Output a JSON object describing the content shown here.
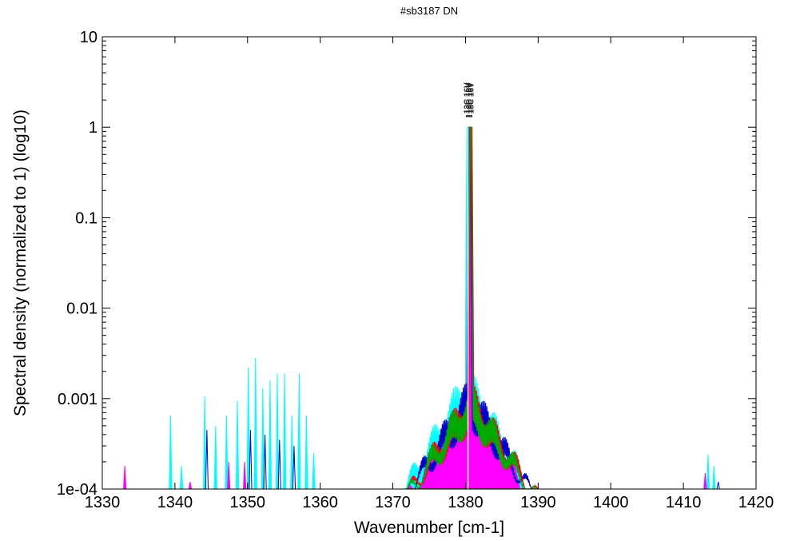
{
  "chart_data": {
    "type": "line",
    "title": "#sb3187 DN",
    "xlabel": "Wavenumber [cm-1]",
    "ylabel": "Spectral density (normalized to 1) (log10)",
    "xlim": [
      1330,
      1420
    ],
    "ylim": [
      0.0001,
      10
    ],
    "yscale": "log",
    "grid": false,
    "legend": "none",
    "xticks": [
      1330,
      1340,
      1350,
      1360,
      1370,
      1380,
      1390,
      1400,
      1410,
      1420
    ],
    "yticks": [
      {
        "value": 0.0001,
        "label": "1e-04"
      },
      {
        "value": 0.001,
        "label": "0.001"
      },
      {
        "value": 0.01,
        "label": "0.01"
      },
      {
        "value": 0.1,
        "label": "0.1"
      },
      {
        "value": 1,
        "label": "1"
      },
      {
        "value": 10,
        "label": "10"
      }
    ],
    "peak_annotations": [
      {
        "x": 1380.2,
        "label": "13C 16V"
      },
      {
        "x": 1380.5,
        "label": "16C 16V"
      },
      {
        "x": 1380.8,
        "label": "18C 16V"
      }
    ],
    "series": [
      {
        "color": "#00ffff",
        "filled": true,
        "center": 1380.3,
        "peak": 1.0,
        "halfwidth": 9.5,
        "line_base": 0.0025,
        "lines": [
          {
            "x": 1339.4,
            "y": 0.00065
          },
          {
            "x": 1340.9,
            "y": 0.00018
          },
          {
            "x": 1344.1,
            "y": 0.00105
          },
          {
            "x": 1345.6,
            "y": 0.0005
          },
          {
            "x": 1347.1,
            "y": 0.00065
          },
          {
            "x": 1348.6,
            "y": 0.00095
          },
          {
            "x": 1350.1,
            "y": 0.0022
          },
          {
            "x": 1351.1,
            "y": 0.0028
          },
          {
            "x": 1352.1,
            "y": 0.0013
          },
          {
            "x": 1353.1,
            "y": 0.0016
          },
          {
            "x": 1354.1,
            "y": 0.0019
          },
          {
            "x": 1355.1,
            "y": 0.0019
          },
          {
            "x": 1356.1,
            "y": 0.00065
          },
          {
            "x": 1357.1,
            "y": 0.0019
          },
          {
            "x": 1358.1,
            "y": 0.00065
          },
          {
            "x": 1359.1,
            "y": 0.00025
          },
          {
            "x": 1413.4,
            "y": 0.00024
          },
          {
            "x": 1414.2,
            "y": 0.00018
          }
        ]
      },
      {
        "color": "#ff00ff",
        "filled": true,
        "center": 1380.5,
        "peak": 1.0,
        "halfwidth": 8.5,
        "line_base": 0.0015,
        "lines": [
          {
            "x": 1333.1,
            "y": 0.00018
          },
          {
            "x": 1342.1,
            "y": 0.00012
          },
          {
            "x": 1347.4,
            "y": 0.0002
          },
          {
            "x": 1349.6,
            "y": 0.0002
          },
          {
            "x": 1413.0,
            "y": 0.00015
          }
        ]
      },
      {
        "color": "#0000cc",
        "filled": false,
        "center": 1380.6,
        "peak": 1.0,
        "halfwidth": 9.0,
        "line_base": 0.0018,
        "lines": [
          {
            "x": 1344.4,
            "y": 0.00045
          },
          {
            "x": 1350.4,
            "y": 0.00045
          },
          {
            "x": 1352.4,
            "y": 0.0004
          },
          {
            "x": 1354.4,
            "y": 0.00035
          },
          {
            "x": 1356.4,
            "y": 0.0003
          },
          {
            "x": 1414.8,
            "y": 0.00012
          }
        ]
      },
      {
        "color": "#ff0000",
        "filled": false,
        "center": 1380.8,
        "peak": 1.0,
        "halfwidth": 9.2,
        "line_base": 0.0016,
        "lines": []
      },
      {
        "color": "#00aa00",
        "filled": false,
        "center": 1380.7,
        "peak": 1.0,
        "halfwidth": 9.0,
        "line_base": 0.0016,
        "lines": []
      }
    ]
  }
}
